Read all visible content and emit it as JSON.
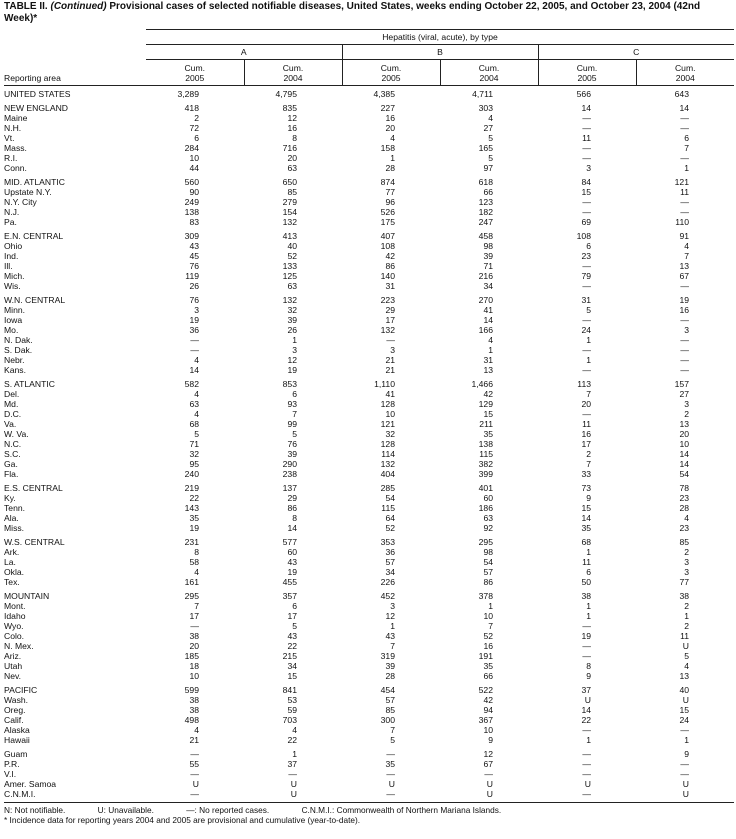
{
  "title": {
    "prefix": "TABLE II. ",
    "continued": "(Continued)",
    "text": " Provisional cases of selected notifiable diseases, United States, weeks ending October 22, 2005, and October 23, 2004 (42nd Week)*"
  },
  "header": {
    "disease": "Hepatitis (viral, acute), by type",
    "types": [
      "A",
      "B",
      "C"
    ],
    "reporting_area": "Reporting area",
    "columns": [
      {
        "cum": "Cum.",
        "year": "2005"
      },
      {
        "cum": "Cum.",
        "year": "2004"
      },
      {
        "cum": "Cum.",
        "year": "2005"
      },
      {
        "cum": "Cum.",
        "year": "2004"
      },
      {
        "cum": "Cum.",
        "year": "2005"
      },
      {
        "cum": "Cum.",
        "year": "2004"
      }
    ]
  },
  "groups": [
    [
      [
        "UNITED STATES",
        "3,289",
        "4,795",
        "4,385",
        "4,711",
        "566",
        "643"
      ]
    ],
    [
      [
        "NEW ENGLAND",
        "418",
        "835",
        "227",
        "303",
        "14",
        "14"
      ],
      [
        "Maine",
        "2",
        "12",
        "16",
        "4",
        "—",
        "—"
      ],
      [
        "N.H.",
        "72",
        "16",
        "20",
        "27",
        "—",
        "—"
      ],
      [
        "Vt.",
        "6",
        "8",
        "4",
        "5",
        "11",
        "6"
      ],
      [
        "Mass.",
        "284",
        "716",
        "158",
        "165",
        "—",
        "7"
      ],
      [
        "R.I.",
        "10",
        "20",
        "1",
        "5",
        "—",
        "—"
      ],
      [
        "Conn.",
        "44",
        "63",
        "28",
        "97",
        "3",
        "1"
      ]
    ],
    [
      [
        "MID. ATLANTIC",
        "560",
        "650",
        "874",
        "618",
        "84",
        "121"
      ],
      [
        "Upstate N.Y.",
        "90",
        "85",
        "77",
        "66",
        "15",
        "11"
      ],
      [
        "N.Y. City",
        "249",
        "279",
        "96",
        "123",
        "—",
        "—"
      ],
      [
        "N.J.",
        "138",
        "154",
        "526",
        "182",
        "—",
        "—"
      ],
      [
        "Pa.",
        "83",
        "132",
        "175",
        "247",
        "69",
        "110"
      ]
    ],
    [
      [
        "E.N. CENTRAL",
        "309",
        "413",
        "407",
        "458",
        "108",
        "91"
      ],
      [
        "Ohio",
        "43",
        "40",
        "108",
        "98",
        "6",
        "4"
      ],
      [
        "Ind.",
        "45",
        "52",
        "42",
        "39",
        "23",
        "7"
      ],
      [
        "Ill.",
        "76",
        "133",
        "86",
        "71",
        "—",
        "13"
      ],
      [
        "Mich.",
        "119",
        "125",
        "140",
        "216",
        "79",
        "67"
      ],
      [
        "Wis.",
        "26",
        "63",
        "31",
        "34",
        "—",
        "—"
      ]
    ],
    [
      [
        "W.N. CENTRAL",
        "76",
        "132",
        "223",
        "270",
        "31",
        "19"
      ],
      [
        "Minn.",
        "3",
        "32",
        "29",
        "41",
        "5",
        "16"
      ],
      [
        "Iowa",
        "19",
        "39",
        "17",
        "14",
        "—",
        "—"
      ],
      [
        "Mo.",
        "36",
        "26",
        "132",
        "166",
        "24",
        "3"
      ],
      [
        "N. Dak.",
        "—",
        "1",
        "—",
        "4",
        "1",
        "—"
      ],
      [
        "S. Dak.",
        "—",
        "3",
        "3",
        "1",
        "—",
        "—"
      ],
      [
        "Nebr.",
        "4",
        "12",
        "21",
        "31",
        "1",
        "—"
      ],
      [
        "Kans.",
        "14",
        "19",
        "21",
        "13",
        "—",
        "—"
      ]
    ],
    [
      [
        "S. ATLANTIC",
        "582",
        "853",
        "1,110",
        "1,466",
        "113",
        "157"
      ],
      [
        "Del.",
        "4",
        "6",
        "41",
        "42",
        "7",
        "27"
      ],
      [
        "Md.",
        "63",
        "93",
        "128",
        "129",
        "20",
        "3"
      ],
      [
        "D.C.",
        "4",
        "7",
        "10",
        "15",
        "—",
        "2"
      ],
      [
        "Va.",
        "68",
        "99",
        "121",
        "211",
        "11",
        "13"
      ],
      [
        "W. Va.",
        "5",
        "5",
        "32",
        "35",
        "16",
        "20"
      ],
      [
        "N.C.",
        "71",
        "76",
        "128",
        "138",
        "17",
        "10"
      ],
      [
        "S.C.",
        "32",
        "39",
        "114",
        "115",
        "2",
        "14"
      ],
      [
        "Ga.",
        "95",
        "290",
        "132",
        "382",
        "7",
        "14"
      ],
      [
        "Fla.",
        "240",
        "238",
        "404",
        "399",
        "33",
        "54"
      ]
    ],
    [
      [
        "E.S. CENTRAL",
        "219",
        "137",
        "285",
        "401",
        "73",
        "78"
      ],
      [
        "Ky.",
        "22",
        "29",
        "54",
        "60",
        "9",
        "23"
      ],
      [
        "Tenn.",
        "143",
        "86",
        "115",
        "186",
        "15",
        "28"
      ],
      [
        "Ala.",
        "35",
        "8",
        "64",
        "63",
        "14",
        "4"
      ],
      [
        "Miss.",
        "19",
        "14",
        "52",
        "92",
        "35",
        "23"
      ]
    ],
    [
      [
        "W.S. CENTRAL",
        "231",
        "577",
        "353",
        "295",
        "68",
        "85"
      ],
      [
        "Ark.",
        "8",
        "60",
        "36",
        "98",
        "1",
        "2"
      ],
      [
        "La.",
        "58",
        "43",
        "57",
        "54",
        "11",
        "3"
      ],
      [
        "Okla.",
        "4",
        "19",
        "34",
        "57",
        "6",
        "3"
      ],
      [
        "Tex.",
        "161",
        "455",
        "226",
        "86",
        "50",
        "77"
      ]
    ],
    [
      [
        "MOUNTAIN",
        "295",
        "357",
        "452",
        "378",
        "38",
        "38"
      ],
      [
        "Mont.",
        "7",
        "6",
        "3",
        "1",
        "1",
        "2"
      ],
      [
        "Idaho",
        "17",
        "17",
        "12",
        "10",
        "1",
        "1"
      ],
      [
        "Wyo.",
        "—",
        "5",
        "1",
        "7",
        "—",
        "2"
      ],
      [
        "Colo.",
        "38",
        "43",
        "43",
        "52",
        "19",
        "11"
      ],
      [
        "N. Mex.",
        "20",
        "22",
        "7",
        "16",
        "—",
        "U"
      ],
      [
        "Ariz.",
        "185",
        "215",
        "319",
        "191",
        "—",
        "5"
      ],
      [
        "Utah",
        "18",
        "34",
        "39",
        "35",
        "8",
        "4"
      ],
      [
        "Nev.",
        "10",
        "15",
        "28",
        "66",
        "9",
        "13"
      ]
    ],
    [
      [
        "PACIFIC",
        "599",
        "841",
        "454",
        "522",
        "37",
        "40"
      ],
      [
        "Wash.",
        "38",
        "53",
        "57",
        "42",
        "U",
        "U"
      ],
      [
        "Oreg.",
        "38",
        "59",
        "85",
        "94",
        "14",
        "15"
      ],
      [
        "Calif.",
        "498",
        "703",
        "300",
        "367",
        "22",
        "24"
      ],
      [
        "Alaska",
        "4",
        "4",
        "7",
        "10",
        "—",
        "—"
      ],
      [
        "Hawaii",
        "21",
        "22",
        "5",
        "9",
        "1",
        "1"
      ]
    ],
    [
      [
        "Guam",
        "—",
        "1",
        "—",
        "12",
        "—",
        "9"
      ],
      [
        "P.R.",
        "55",
        "37",
        "35",
        "67",
        "—",
        "—"
      ],
      [
        "V.I.",
        "—",
        "—",
        "—",
        "—",
        "—",
        "—"
      ],
      [
        "Amer. Samoa",
        "U",
        "U",
        "U",
        "U",
        "U",
        "U"
      ],
      [
        "C.N.M.I.",
        "—",
        "U",
        "—",
        "U",
        "—",
        "U"
      ]
    ]
  ],
  "footnotes": {
    "legend": [
      "N: Not notifiable.",
      "U: Unavailable.",
      "—: No reported cases.",
      "C.N.M.I.: Commonwealth of Northern Mariana Islands."
    ],
    "note": "* Incidence data for reporting years 2004 and 2005 are provisional and cumulative (year-to-date)."
  }
}
